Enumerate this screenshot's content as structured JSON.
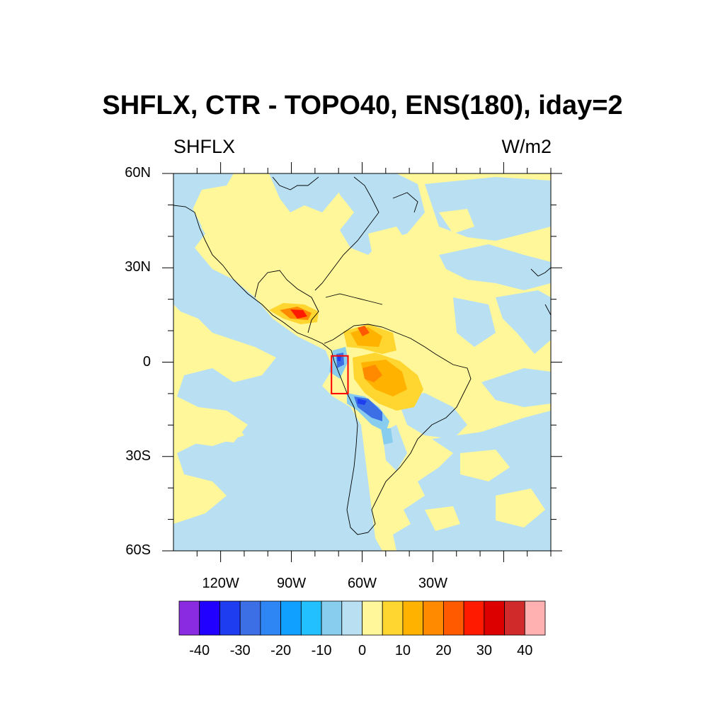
{
  "title": "SHFLX, CTR - TOPO40, ENS(180), iday=2",
  "subtitle_left": "SHFLX",
  "subtitle_right": "W/m2",
  "map": {
    "lon_range": [
      -140,
      20
    ],
    "lat_range": [
      -60,
      60
    ],
    "lat_labels": [
      "60N",
      "30N",
      "0",
      "30S",
      "60S"
    ],
    "lat_values": [
      60,
      30,
      0,
      -30,
      -60
    ],
    "lon_labels": [
      "120W",
      "90W",
      "60W",
      "30W"
    ],
    "lon_values": [
      -120,
      -90,
      -60,
      -30
    ],
    "box_region": {
      "lon": [
        -73,
        -66
      ],
      "lat": [
        -10,
        2
      ],
      "color": "#ff0000"
    }
  },
  "colorbar": {
    "colors": [
      "#8a2be2",
      "#2200ff",
      "#1e3cf0",
      "#3c6ee6",
      "#2e86f5",
      "#10a0ff",
      "#22c0ff",
      "#88ccee",
      "#b8e0f2",
      "#fff79a",
      "#ffd530",
      "#ffb300",
      "#ff8a00",
      "#ff5a00",
      "#ff1a00",
      "#dc0000",
      "#d02a2a",
      "#ffb0b0"
    ],
    "tick_labels": [
      "-40",
      "-30",
      "-20",
      "-10",
      "0",
      "10",
      "20",
      "30",
      "40"
    ]
  }
}
